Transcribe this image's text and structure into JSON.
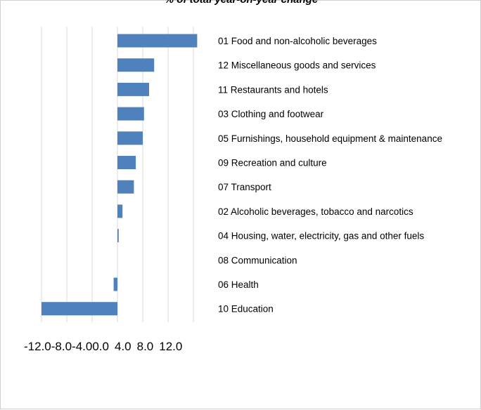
{
  "chart_data": {
    "type": "bar",
    "orientation": "horizontal",
    "title": "% of total year-on-year change",
    "xlabel": "",
    "ylabel": "",
    "xlim": [
      -12.0,
      12.0
    ],
    "tick_values": [
      -12.0,
      -8.0,
      -4.0,
      0.0,
      4.0,
      8.0,
      12.0
    ],
    "tick_labels": [
      "-12.0",
      "-8.0",
      "-4.0",
      "0.0",
      "4.0",
      "8.0",
      "12.0"
    ],
    "grid": true,
    "legend": "none",
    "bar_color": "#4f81bd",
    "categories": [
      "01 Food and non-alcoholic beverages",
      "12 Miscellaneous goods and services",
      "11 Restaurants and hotels",
      "03 Clothing and footwear",
      "05 Furnishings, household equipment & maintenance",
      "09 Recreation and culture",
      "07 Transport",
      "02 Alcoholic beverages, tobacco and narcotics",
      "04 Housing, water, electricity, gas and other fuels",
      "08 Communication",
      "06 Health",
      "10 Education"
    ],
    "values": [
      12.6,
      5.8,
      5.0,
      4.2,
      4.0,
      2.9,
      2.6,
      0.8,
      0.2,
      0.0,
      -0.6,
      -12.0
    ]
  }
}
